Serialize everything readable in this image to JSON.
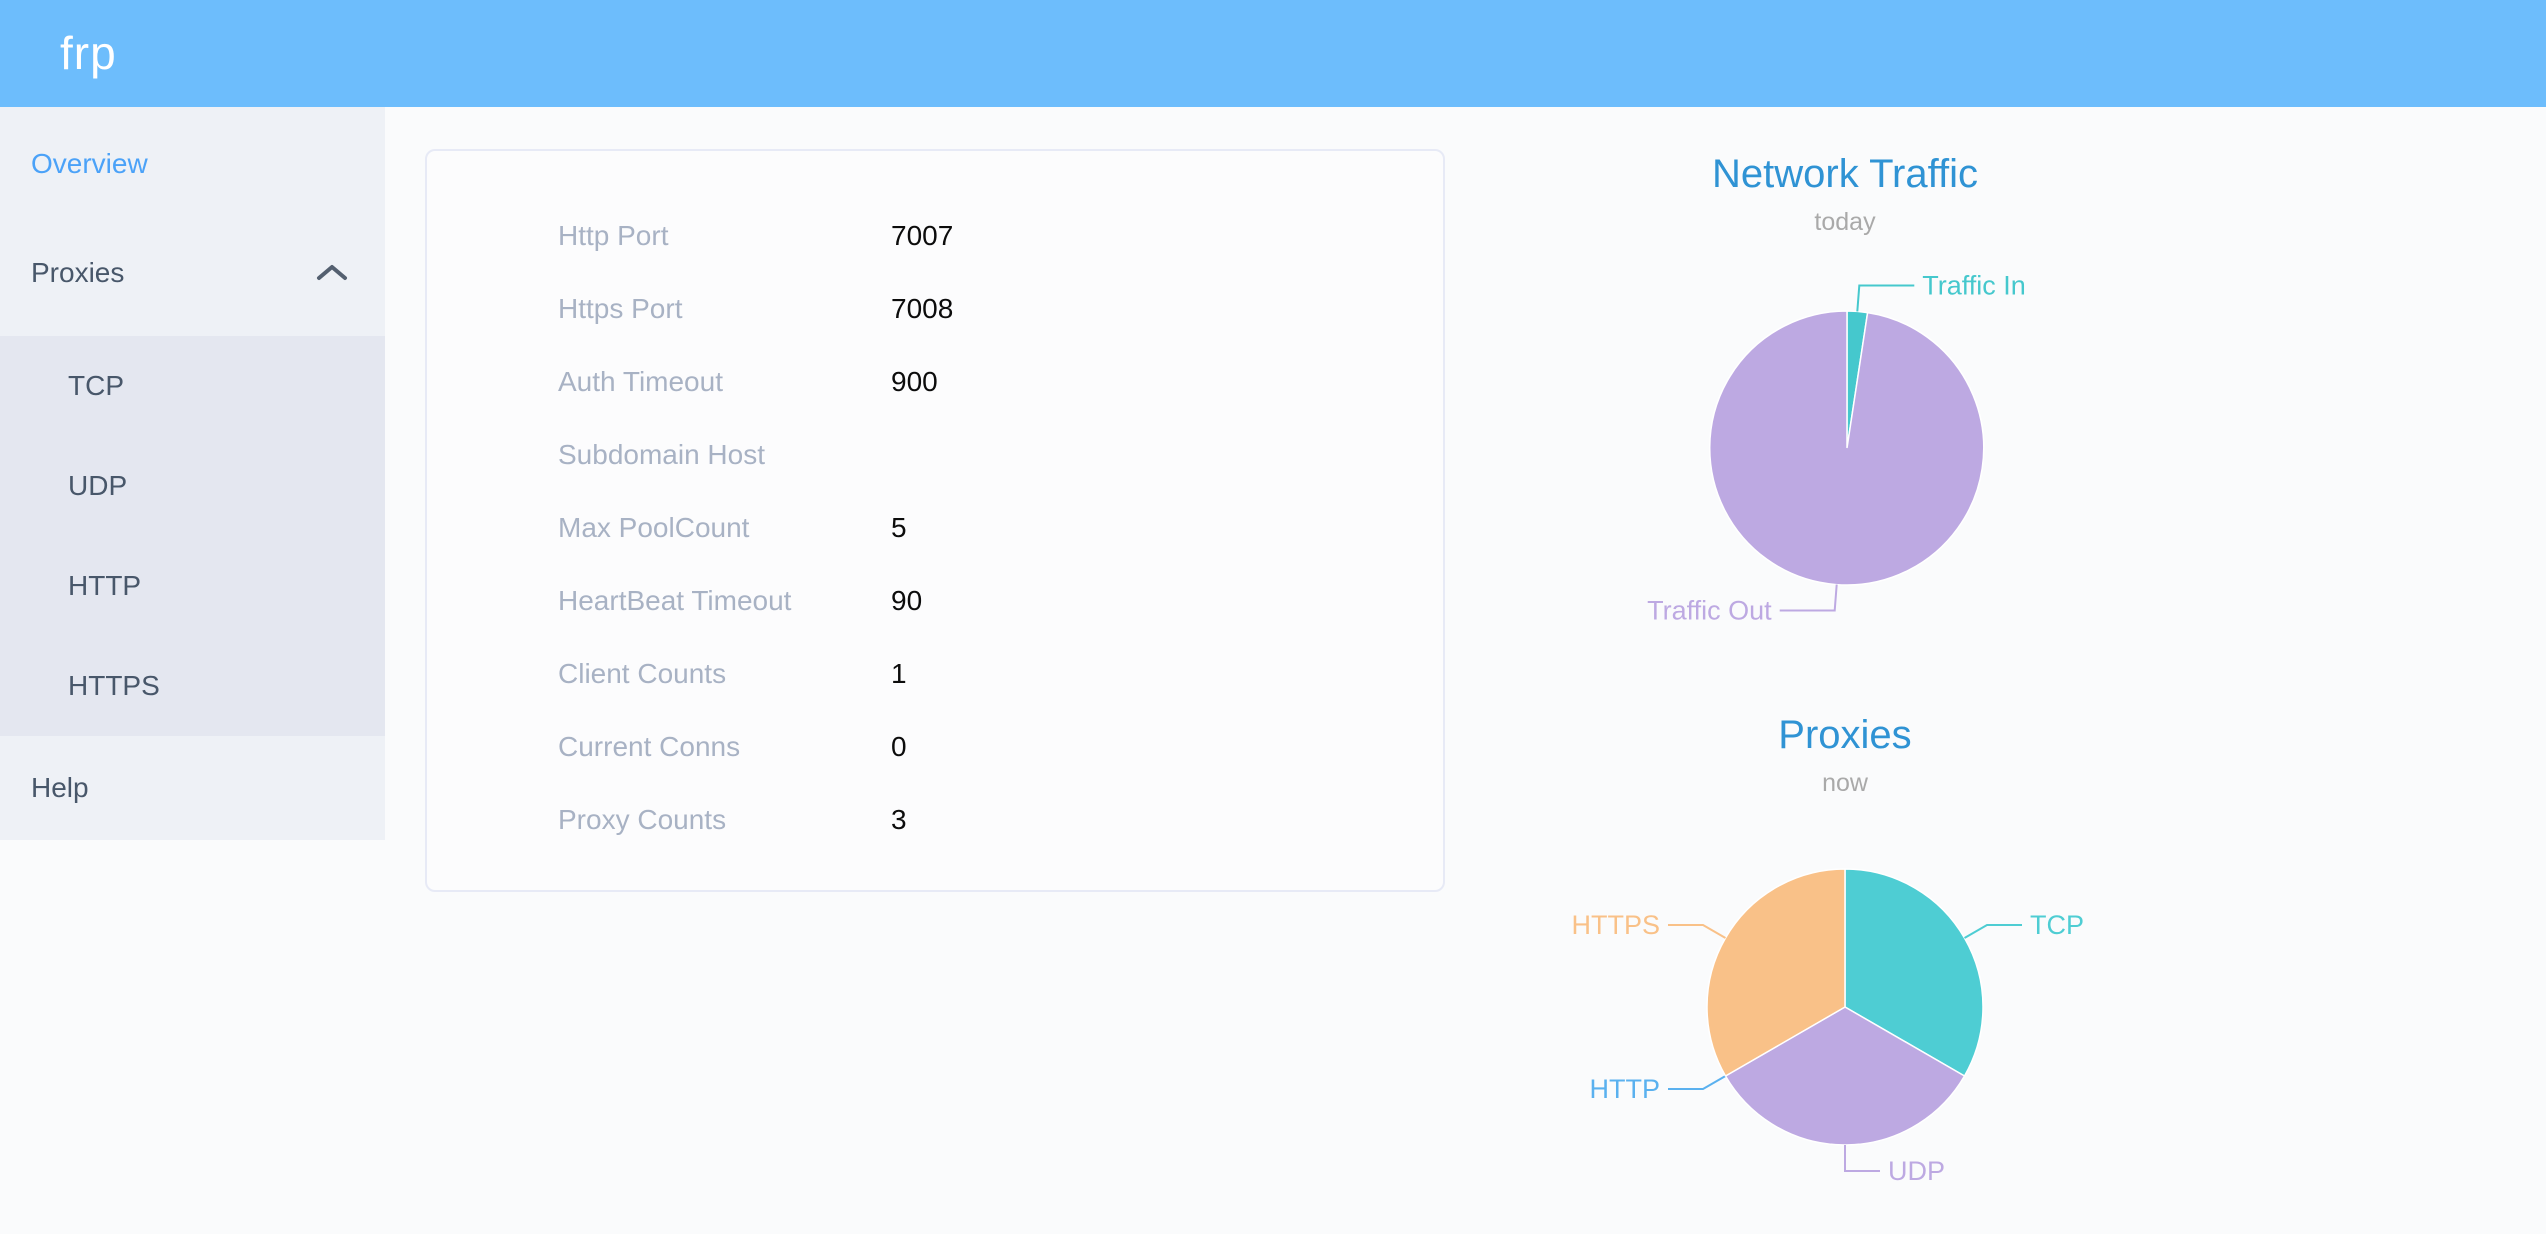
{
  "ui_colors": {
    "header_bg": "#6dbdfc",
    "logo_text": "#ffffff",
    "active_link": "#4ba2f8",
    "sidebar_text": "#48576a",
    "sidebar_bg": "#eef1f6",
    "submenu_bg": "#e4e7f0",
    "card_label": "#a8b2c4",
    "card_value": "#0c0c0c",
    "chart_title": "#2f93d4",
    "chart_subtitle": "#a9a9a9",
    "page_bg": "#fafbfc"
  },
  "header": {
    "logo": "frp"
  },
  "sidebar": {
    "overview_label": "Overview",
    "proxies_label": "Proxies",
    "help_label": "Help",
    "proxies_children": [
      "TCP",
      "UDP",
      "HTTP",
      "HTTPS"
    ]
  },
  "overview_card": {
    "rows": [
      {
        "label": "Http Port",
        "value": "7007"
      },
      {
        "label": "Https Port",
        "value": "7008"
      },
      {
        "label": "Auth Timeout",
        "value": "900"
      },
      {
        "label": "Subdomain Host",
        "value": ""
      },
      {
        "label": "Max PoolCount",
        "value": "5"
      },
      {
        "label": "HeartBeat Timeout",
        "value": "90"
      },
      {
        "label": "Client Counts",
        "value": "1"
      },
      {
        "label": "Current Conns",
        "value": "0"
      },
      {
        "label": "Proxy Counts",
        "value": "3"
      }
    ]
  },
  "chart_data": [
    {
      "type": "pie",
      "title": "Network Traffic",
      "subtitle": "today",
      "legend_position": "none",
      "series": [
        {
          "name": "Traffic In",
          "value": 2.4,
          "color": "#45c8cd",
          "label_side": "right"
        },
        {
          "name": "Traffic Out",
          "value": 97.6,
          "color": "#bda9e2",
          "label_side": "left"
        }
      ]
    },
    {
      "type": "pie",
      "title": "Proxies",
      "subtitle": "now",
      "legend_position": "none",
      "series": [
        {
          "name": "TCP",
          "value": 1,
          "color": "#4ecdd3",
          "label_side": "right"
        },
        {
          "name": "UDP",
          "value": 1,
          "color": "#bda9e2",
          "label_side": "right"
        },
        {
          "name": "HTTP",
          "value": 0,
          "color": "#5ab1ef",
          "label_side": "left"
        },
        {
          "name": "HTTPS",
          "value": 1,
          "color": "#f9c188",
          "label_side": "left"
        }
      ]
    }
  ]
}
